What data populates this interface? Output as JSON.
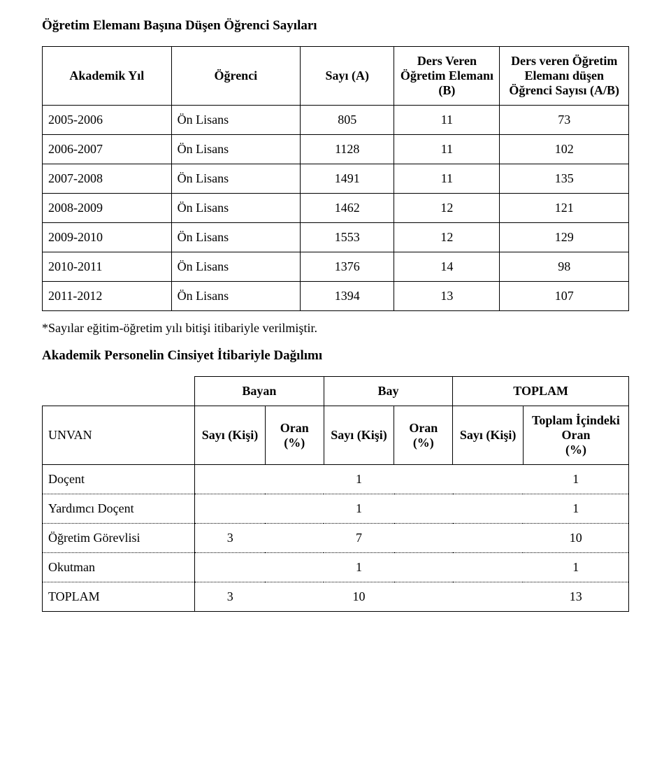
{
  "title1": "Öğretim Elemanı Başına Düşen Öğrenci Sayıları",
  "table1": {
    "headers": {
      "col0": "Akademik Yıl",
      "col1": "Öğrenci",
      "col2": "Sayı (A)",
      "col3": "Ders Veren Öğretim Elemanı (B)",
      "col4": "Ders veren Öğretim Elemanı düşen Öğrenci Sayısı (A/B)"
    },
    "rows": [
      {
        "year": "2005-2006",
        "type": "Ön Lisans",
        "a": "805",
        "b": "11",
        "ab": "73"
      },
      {
        "year": "2006-2007",
        "type": "Ön Lisans",
        "a": "1128",
        "b": "11",
        "ab": "102"
      },
      {
        "year": "2007-2008",
        "type": "Ön Lisans",
        "a": "1491",
        "b": "11",
        "ab": "135"
      },
      {
        "year": "2008-2009",
        "type": "Ön Lisans",
        "a": "1462",
        "b": "12",
        "ab": "121"
      },
      {
        "year": "2009-2010",
        "type": "Ön Lisans",
        "a": "1553",
        "b": "12",
        "ab": "129"
      },
      {
        "year": "2010-2011",
        "type": "Ön Lisans",
        "a": "1376",
        "b": "14",
        "ab": "98"
      },
      {
        "year": "2011-2012",
        "type": "Ön Lisans",
        "a": "1394",
        "b": "13",
        "ab": "107"
      }
    ]
  },
  "footnote": "*Sayılar eğitim-öğretim yılı bitişi itibariyle verilmiştir.",
  "title2": "Akademik Personelin Cinsiyet İtibariyle Dağılımı",
  "table2": {
    "groupHeaders": {
      "bayan": "Bayan",
      "bay": "Bay",
      "toplam": "TOPLAM"
    },
    "colHeaders": {
      "unvan": "UNVAN",
      "sayi_kisi": "Sayı (Kişi)",
      "oran_pct": "Oran (%)",
      "toplam_icindeki": "Toplam İçindeki Oran",
      "pct": "(%)"
    },
    "rows": [
      {
        "unvan": "Doçent",
        "bayan_s": "",
        "bayan_o": "",
        "bay_s": "1",
        "bay_o": "",
        "top_s": "",
        "top_o": "1"
      },
      {
        "unvan": "Yardımcı Doçent",
        "bayan_s": "",
        "bayan_o": "",
        "bay_s": "1",
        "bay_o": "",
        "top_s": "",
        "top_o": "1"
      },
      {
        "unvan": "Öğretim Görevlisi",
        "bayan_s": "3",
        "bayan_o": "",
        "bay_s": "7",
        "bay_o": "",
        "top_s": "",
        "top_o": "10"
      },
      {
        "unvan": "Okutman",
        "bayan_s": "",
        "bayan_o": "",
        "bay_s": "1",
        "bay_o": "",
        "top_s": "",
        "top_o": "1"
      },
      {
        "unvan": "TOPLAM",
        "bayan_s": "3",
        "bayan_o": "",
        "bay_s": "10",
        "bay_o": "",
        "top_s": "",
        "top_o": "13"
      }
    ]
  }
}
